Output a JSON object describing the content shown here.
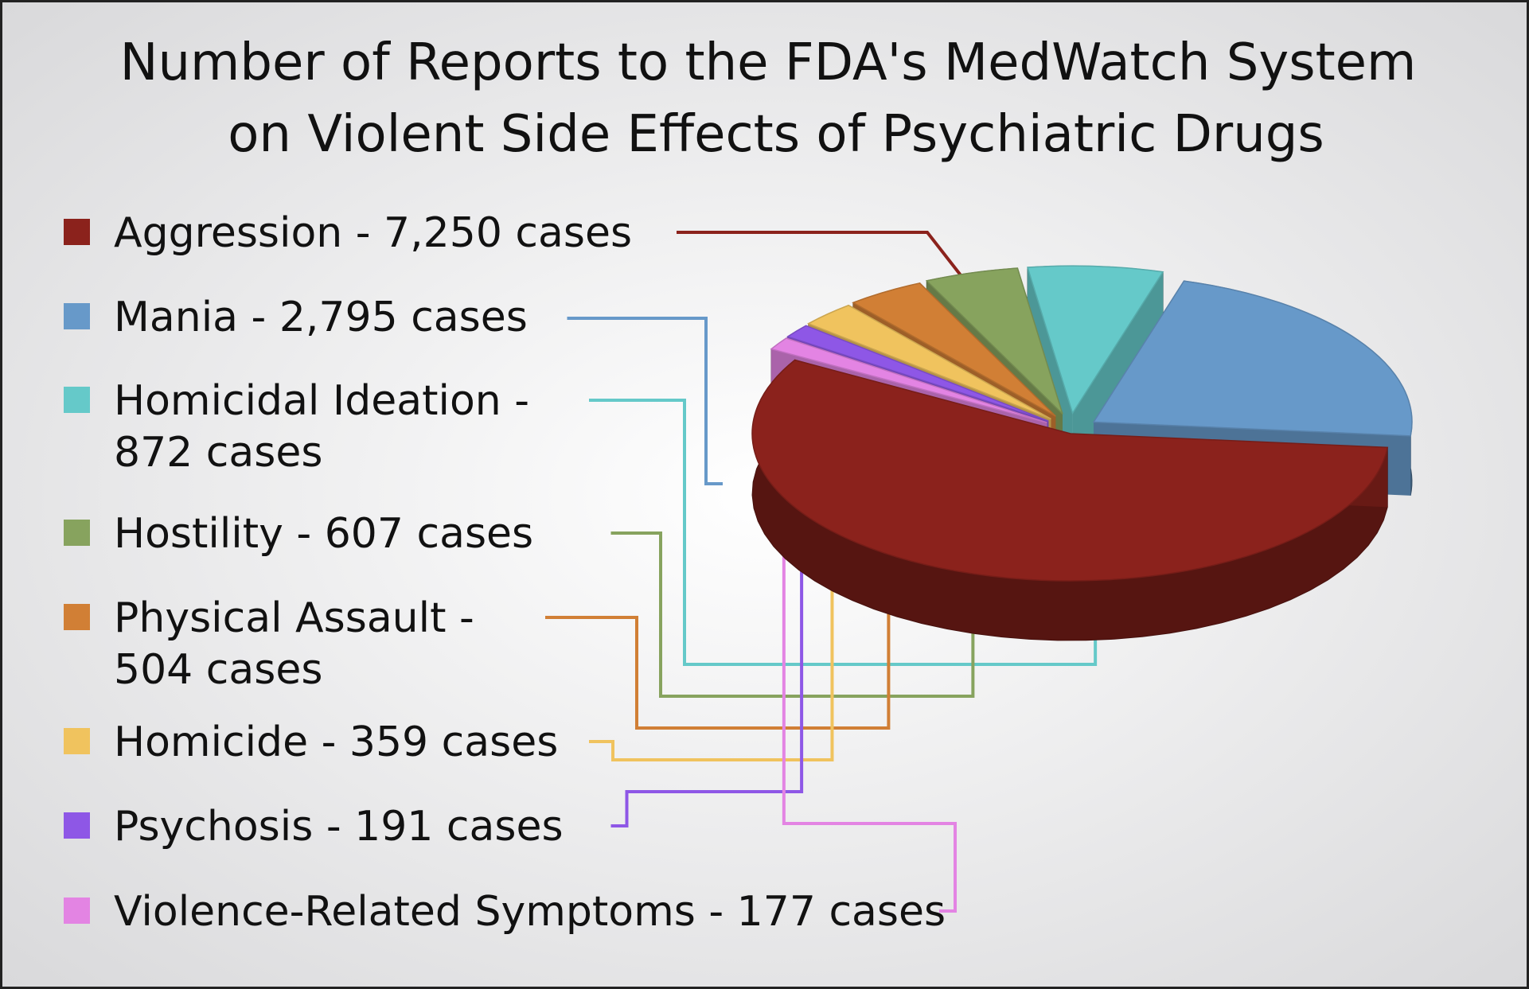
{
  "chart_data": {
    "type": "pie",
    "title_lines": [
      "Number of Reports to the FDA's MedWatch System",
      "on Violent Side Effects of Psychiatric Drugs"
    ],
    "legend_position": "left",
    "series": [
      {
        "lines": [
          "Aggression - 7,250 cases"
        ],
        "value": 7250,
        "color": "#8B221C"
      },
      {
        "lines": [
          "Mania - 2,795 cases"
        ],
        "value": 2795,
        "color": "#6799C9"
      },
      {
        "lines": [
          "Homicidal Ideation -",
          "872 cases"
        ],
        "value": 872,
        "color": "#65C9C9"
      },
      {
        "lines": [
          "Hostility - 607 cases"
        ],
        "value": 607,
        "color": "#87A35E"
      },
      {
        "lines": [
          "Physical Assault -",
          "504 cases"
        ],
        "value": 504,
        "color": "#D17F35"
      },
      {
        "lines": [
          "Homicide - 359 cases"
        ],
        "value": 359,
        "color": "#F0C35E"
      },
      {
        "lines": [
          "Psychosis - 191 cases"
        ],
        "value": 191,
        "color": "#8E57E6"
      },
      {
        "lines": [
          "Violence-Related Symptoms - 177 cases"
        ],
        "value": 177,
        "color": "#E384E3"
      }
    ]
  }
}
